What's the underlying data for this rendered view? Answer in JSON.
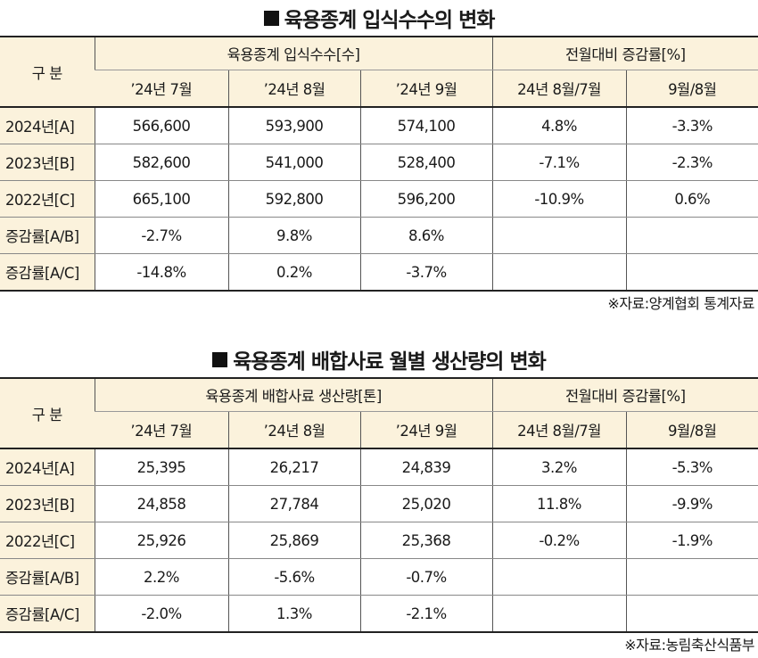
{
  "table1": {
    "title": "육용종계 입식수수의 변화",
    "corner": "구 분",
    "group_main": "육용종계 입식수수[수]",
    "group_change": "전월대비 증감률[%]",
    "months": [
      "’24년 7월",
      "’24년 8월",
      "’24년 9월"
    ],
    "change_cols": [
      "24년 8월/7월",
      "9월/8월"
    ],
    "rows": [
      {
        "label": "2024년[A]",
        "v1": "566,600",
        "v2": "593,900",
        "v3": "574,100",
        "c1": "4.8%",
        "c2": "-3.3%"
      },
      {
        "label": "2023년[B]",
        "v1": "582,600",
        "v2": "541,000",
        "v3": "528,400",
        "c1": "-7.1%",
        "c2": "-2.3%"
      },
      {
        "label": "2022년[C]",
        "v1": "665,100",
        "v2": "592,800",
        "v3": "596,200",
        "c1": "-10.9%",
        "c2": "0.6%"
      },
      {
        "label": "증감률[A/B]",
        "v1": "-2.7%",
        "v2": "9.8%",
        "v3": "8.6%",
        "c1": "",
        "c2": ""
      },
      {
        "label": "증감률[A/C]",
        "v1": "-14.8%",
        "v2": "0.2%",
        "v3": "-3.7%",
        "c1": "",
        "c2": ""
      }
    ],
    "source": "※자료:양계협회 통계자료"
  },
  "table2": {
    "title": "육용종계 배합사료 월별 생산량의 변화",
    "corner": "구 분",
    "group_main": "육용종계 배합사료 생산량[톤]",
    "group_change": "전월대비 증감률[%]",
    "months": [
      "’24년 7월",
      "’24년 8월",
      "’24년 9월"
    ],
    "change_cols": [
      "24년 8월/7월",
      "9월/8월"
    ],
    "rows": [
      {
        "label": "2024년[A]",
        "v1": "25,395",
        "v2": "26,217",
        "v3": "24,839",
        "c1": "3.2%",
        "c2": "-5.3%"
      },
      {
        "label": "2023년[B]",
        "v1": "24,858",
        "v2": "27,784",
        "v3": "25,020",
        "c1": "11.8%",
        "c2": "-9.9%"
      },
      {
        "label": "2022년[C]",
        "v1": "25,926",
        "v2": "25,869",
        "v3": "25,368",
        "c1": "-0.2%",
        "c2": "-1.9%"
      },
      {
        "label": "증감률[A/B]",
        "v1": "2.2%",
        "v2": "-5.6%",
        "v3": "-0.7%",
        "c1": "",
        "c2": ""
      },
      {
        "label": "증감률[A/C]",
        "v1": "-2.0%",
        "v2": "1.3%",
        "v3": "-2.1%",
        "c1": "",
        "c2": ""
      }
    ],
    "source": "※자료:농림축산식품부"
  }
}
